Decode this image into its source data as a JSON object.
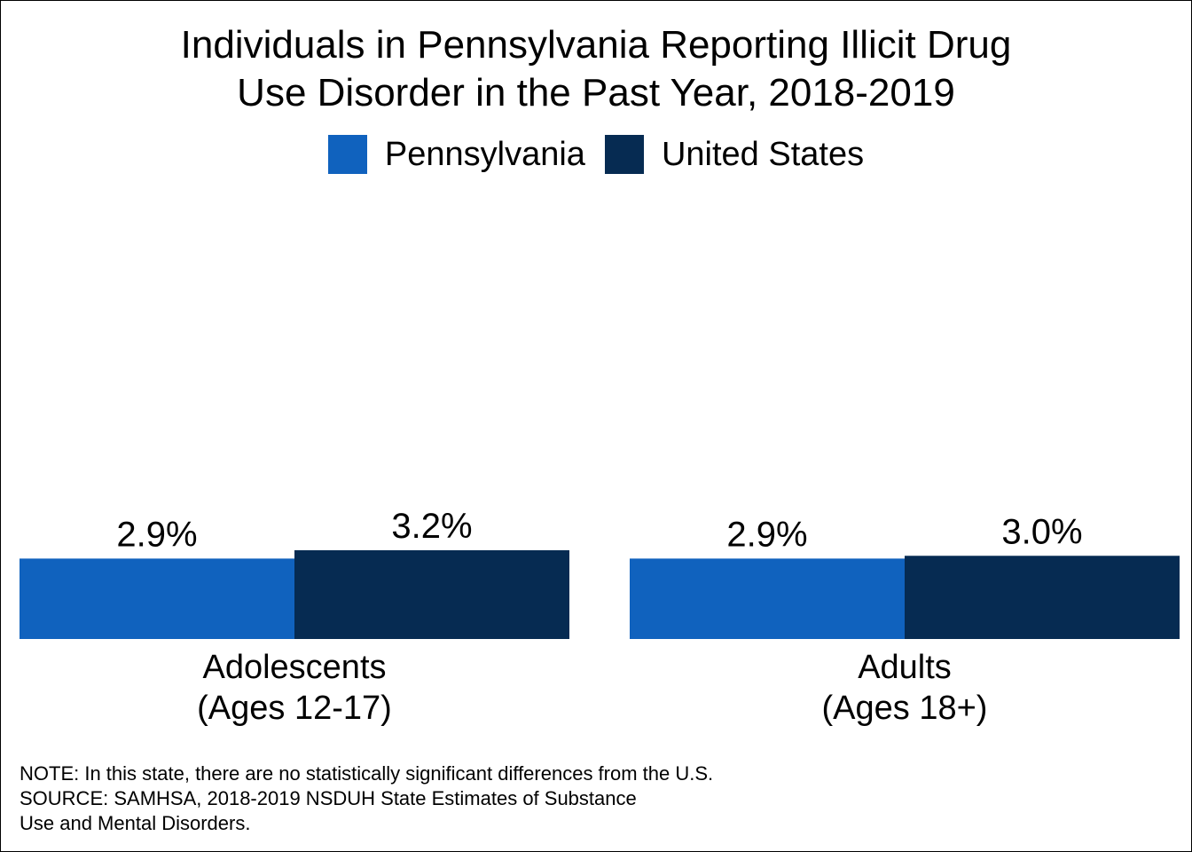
{
  "chart_data": {
    "type": "bar",
    "title": "Individuals in Pennsylvania Reporting Illicit Drug\nUse Disorder in the Past Year, 2018-2019",
    "categories": [
      "Adolescents\n(Ages 12-17)",
      "Adults\n(Ages 18+)"
    ],
    "series": [
      {
        "name": "Pennsylvania",
        "values": [
          2.9,
          2.9
        ],
        "labels": [
          "2.9%",
          "2.9%"
        ],
        "color": "#1062BE"
      },
      {
        "name": "United States",
        "values": [
          3.2,
          3.0
        ],
        "labels": [
          "3.2%",
          "3.0%"
        ],
        "color": "#062B52"
      }
    ],
    "legend": "top-center",
    "grid": false,
    "xlabel": "",
    "ylabel": "",
    "ylim": [
      0,
      3.2
    ],
    "notes": "NOTE: In this state, there are no statistically significant differences from the U.S.\nSOURCE: SAMHSA, 2018-2019 NSDUH State Estimates of Substance\nUse and Mental Disorders."
  }
}
